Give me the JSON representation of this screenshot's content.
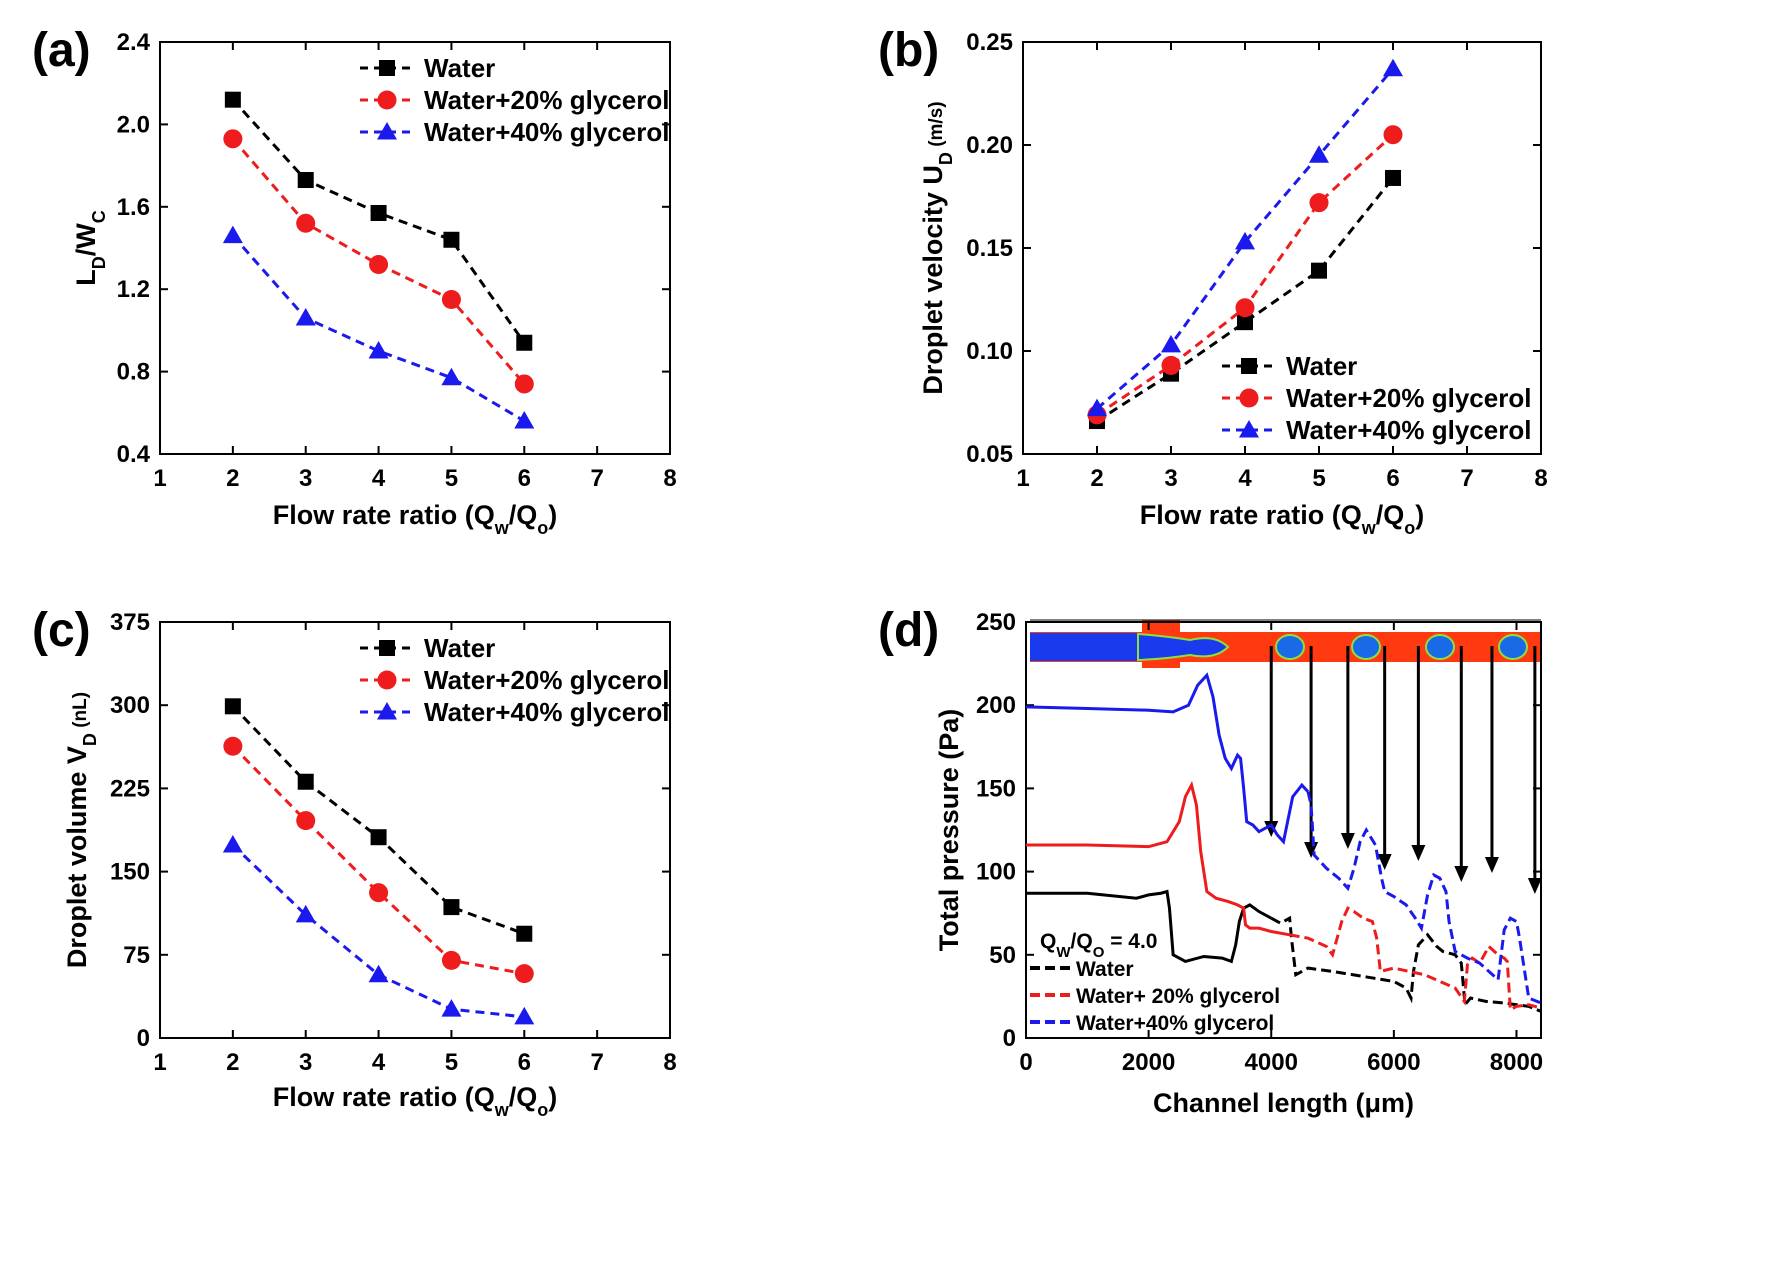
{
  "chart_data": [
    {
      "id": "a",
      "panel_label": "(a)",
      "type": "line",
      "title": "",
      "xlabel": "Flow rate ratio (Q",
      "xlabel_sub1": "w",
      "xlabel_mid": "/Q",
      "xlabel_sub2": "o",
      "xlabel_end": ")",
      "ylabel": "L",
      "ylabel_sub1": "D",
      "ylabel_mid": "/W",
      "ylabel_sub2": "C",
      "ylabel_end": "",
      "xlim": [
        1,
        8
      ],
      "ylim": [
        0.4,
        2.4
      ],
      "xticks": [
        1,
        2,
        3,
        4,
        5,
        6,
        7,
        8
      ],
      "yticks": [
        0.4,
        0.8,
        1.2,
        1.6,
        2.0,
        2.4
      ],
      "ytick_labels": [
        "0.4",
        "0.8",
        "1.2",
        "1.6",
        "2.0",
        "2.4"
      ],
      "legend_position": "top-right",
      "x": [
        2,
        3,
        4,
        5,
        6
      ],
      "series": [
        {
          "name": "Water",
          "color": "#000000",
          "marker": "square",
          "values": [
            2.12,
            1.73,
            1.57,
            1.44,
            0.94
          ]
        },
        {
          "name": "Water+20% glycerol",
          "color": "#ee1c1c",
          "marker": "circle",
          "values": [
            1.93,
            1.52,
            1.32,
            1.15,
            0.74
          ]
        },
        {
          "name": "Water+40% glycerol",
          "color": "#1a1aee",
          "marker": "triangle",
          "values": [
            1.46,
            1.06,
            0.9,
            0.77,
            0.56
          ]
        }
      ]
    },
    {
      "id": "b",
      "panel_label": "(b)",
      "type": "line",
      "title": "",
      "xlabel": "Flow rate ratio (Q",
      "xlabel_sub1": "w",
      "xlabel_mid": "/Q",
      "xlabel_sub2": "o",
      "xlabel_end": ")",
      "ylabel": "Droplet velocity U",
      "ylabel_sub1": "D",
      "ylabel_mid": "",
      "ylabel_sub2": "",
      "ylabel_end": " (m/s)",
      "xlim": [
        1,
        8
      ],
      "ylim": [
        0.05,
        0.25
      ],
      "xticks": [
        1,
        2,
        3,
        4,
        5,
        6,
        7,
        8
      ],
      "yticks": [
        0.05,
        0.1,
        0.15,
        0.2,
        0.25
      ],
      "ytick_labels": [
        "0.05",
        "0.10",
        "0.15",
        "0.20",
        "0.25"
      ],
      "legend_position": "bottom-right",
      "x": [
        2,
        3,
        4,
        5,
        6
      ],
      "series": [
        {
          "name": "Water",
          "color": "#000000",
          "marker": "square",
          "values": [
            0.066,
            0.089,
            0.114,
            0.139,
            0.184
          ]
        },
        {
          "name": "Water+20% glycerol",
          "color": "#ee1c1c",
          "marker": "circle",
          "values": [
            0.069,
            0.093,
            0.121,
            0.172,
            0.205
          ]
        },
        {
          "name": "Water+40% glycerol",
          "color": "#1a1aee",
          "marker": "triangle",
          "values": [
            0.072,
            0.103,
            0.153,
            0.195,
            0.237
          ]
        }
      ]
    },
    {
      "id": "c",
      "panel_label": "(c)",
      "type": "line",
      "title": "",
      "xlabel": "Flow rate ratio (Q",
      "xlabel_sub1": "w",
      "xlabel_mid": "/Q",
      "xlabel_sub2": "o",
      "xlabel_end": ")",
      "ylabel": "Droplet volume V",
      "ylabel_sub1": "D",
      "ylabel_mid": "",
      "ylabel_sub2": "",
      "ylabel_end": " (nL)",
      "xlim": [
        1,
        8
      ],
      "ylim": [
        0,
        375
      ],
      "xticks": [
        1,
        2,
        3,
        4,
        5,
        6,
        7,
        8
      ],
      "yticks": [
        0,
        75,
        150,
        225,
        300,
        375
      ],
      "ytick_labels": [
        "0",
        "75",
        "150",
        "225",
        "300",
        "375"
      ],
      "legend_position": "top-right",
      "x": [
        2,
        3,
        4,
        5,
        6
      ],
      "series": [
        {
          "name": "Water",
          "color": "#000000",
          "marker": "square",
          "values": [
            299,
            231,
            181,
            118,
            94
          ]
        },
        {
          "name": "Water+20% glycerol",
          "color": "#ee1c1c",
          "marker": "circle",
          "values": [
            263,
            196,
            131,
            70,
            58
          ]
        },
        {
          "name": "Water+40% glycerol",
          "color": "#1a1aee",
          "marker": "triangle",
          "values": [
            174,
            111,
            57,
            26,
            19
          ]
        }
      ]
    },
    {
      "id": "d",
      "panel_label": "(d)",
      "type": "line",
      "title": "",
      "xlabel": "Channel length (μm)",
      "ylabel": "Total pressure (Pa)",
      "xlim": [
        0,
        8400
      ],
      "ylim": [
        0,
        250
      ],
      "xticks": [
        0,
        2000,
        4000,
        6000,
        8000
      ],
      "xtick_labels": [
        "0",
        "2000",
        "4000",
        "6000",
        "8000"
      ],
      "yticks": [
        0,
        50,
        100,
        150,
        200,
        250
      ],
      "ytick_labels": [
        "0",
        "50",
        "100",
        "150",
        "200",
        "250"
      ],
      "legend_position": "bottom-left",
      "annotation": "Q",
      "annotation_sub1": "W",
      "annotation_mid": "/Q",
      "annotation_sub2": "O",
      "annotation_end": " = 4.0",
      "inset_image": "channel-droplet-simulation",
      "arrow_x": [
        4000,
        4650,
        5250,
        5850,
        6400,
        7100,
        7600,
        8300
      ],
      "series": [
        {
          "name": "Water",
          "color": "#000000",
          "style": "solid-dashed",
          "x": [
            0,
            1000,
            1800,
            2000,
            2200,
            2300,
            2340,
            2400,
            2600,
            2900,
            3200,
            3350,
            3420,
            3480,
            3550,
            3650,
            3800,
            4000,
            4150,
            4300,
            4330,
            4400,
            4600,
            5000,
            5500,
            6000,
            6200,
            6280,
            6320,
            6400,
            6550,
            6700,
            6800,
            7000,
            7100,
            7160,
            7250,
            7500,
            7800,
            8000,
            8200,
            8400
          ],
          "y": [
            87,
            87,
            84,
            86,
            87,
            88,
            78,
            50,
            46,
            49,
            48,
            46,
            56,
            70,
            78,
            80,
            76,
            72,
            69,
            72,
            60,
            38,
            42,
            40,
            37,
            34,
            30,
            24,
            40,
            56,
            62,
            55,
            52,
            50,
            45,
            20,
            24,
            22,
            21,
            20,
            19,
            16
          ]
        },
        {
          "name": "Water+ 20% glycerol",
          "color": "#ee1c1c",
          "style": "solid-dashed",
          "x": [
            0,
            1000,
            2000,
            2300,
            2500,
            2600,
            2700,
            2780,
            2850,
            2950,
            3100,
            3300,
            3450,
            3550,
            3580,
            3650,
            3800,
            4000,
            4300,
            4600,
            4900,
            5000,
            5150,
            5250,
            5350,
            5500,
            5650,
            5720,
            5780,
            6000,
            6500,
            7000,
            7150,
            7200,
            7280,
            7400,
            7550,
            7700,
            7800,
            7850,
            7900,
            8000,
            8200,
            8400
          ],
          "y": [
            116,
            116,
            115,
            118,
            130,
            145,
            152,
            140,
            112,
            88,
            84,
            82,
            80,
            78,
            68,
            66,
            66,
            64,
            62,
            60,
            55,
            50,
            70,
            78,
            76,
            72,
            70,
            60,
            40,
            42,
            38,
            30,
            22,
            44,
            48,
            45,
            55,
            50,
            48,
            46,
            17,
            19,
            20,
            18
          ]
        },
        {
          "name": "Water+40% glycerol",
          "color": "#1a1aee",
          "style": "solid-dashed",
          "x": [
            0,
            1000,
            2000,
            2400,
            2650,
            2800,
            2950,
            3050,
            3150,
            3250,
            3350,
            3450,
            3500,
            3550,
            3600,
            3700,
            3800,
            4000,
            4100,
            4200,
            4350,
            4500,
            4600,
            4650,
            4700,
            4900,
            5100,
            5250,
            5350,
            5450,
            5550,
            5700,
            5800,
            5850,
            6000,
            6200,
            6350,
            6450,
            6550,
            6650,
            6750,
            6850,
            6900,
            7000,
            7200,
            7400,
            7550,
            7700,
            7800,
            7900,
            8000,
            8050,
            8200,
            8400
          ],
          "y": [
            199,
            198,
            197,
            196,
            200,
            212,
            218,
            205,
            182,
            168,
            162,
            170,
            168,
            150,
            130,
            128,
            124,
            128,
            122,
            118,
            145,
            152,
            148,
            140,
            110,
            102,
            96,
            90,
            102,
            118,
            125,
            116,
            96,
            88,
            85,
            80,
            72,
            66,
            86,
            98,
            96,
            88,
            70,
            52,
            48,
            45,
            40,
            35,
            65,
            72,
            70,
            60,
            24,
            21
          ]
        }
      ]
    }
  ]
}
